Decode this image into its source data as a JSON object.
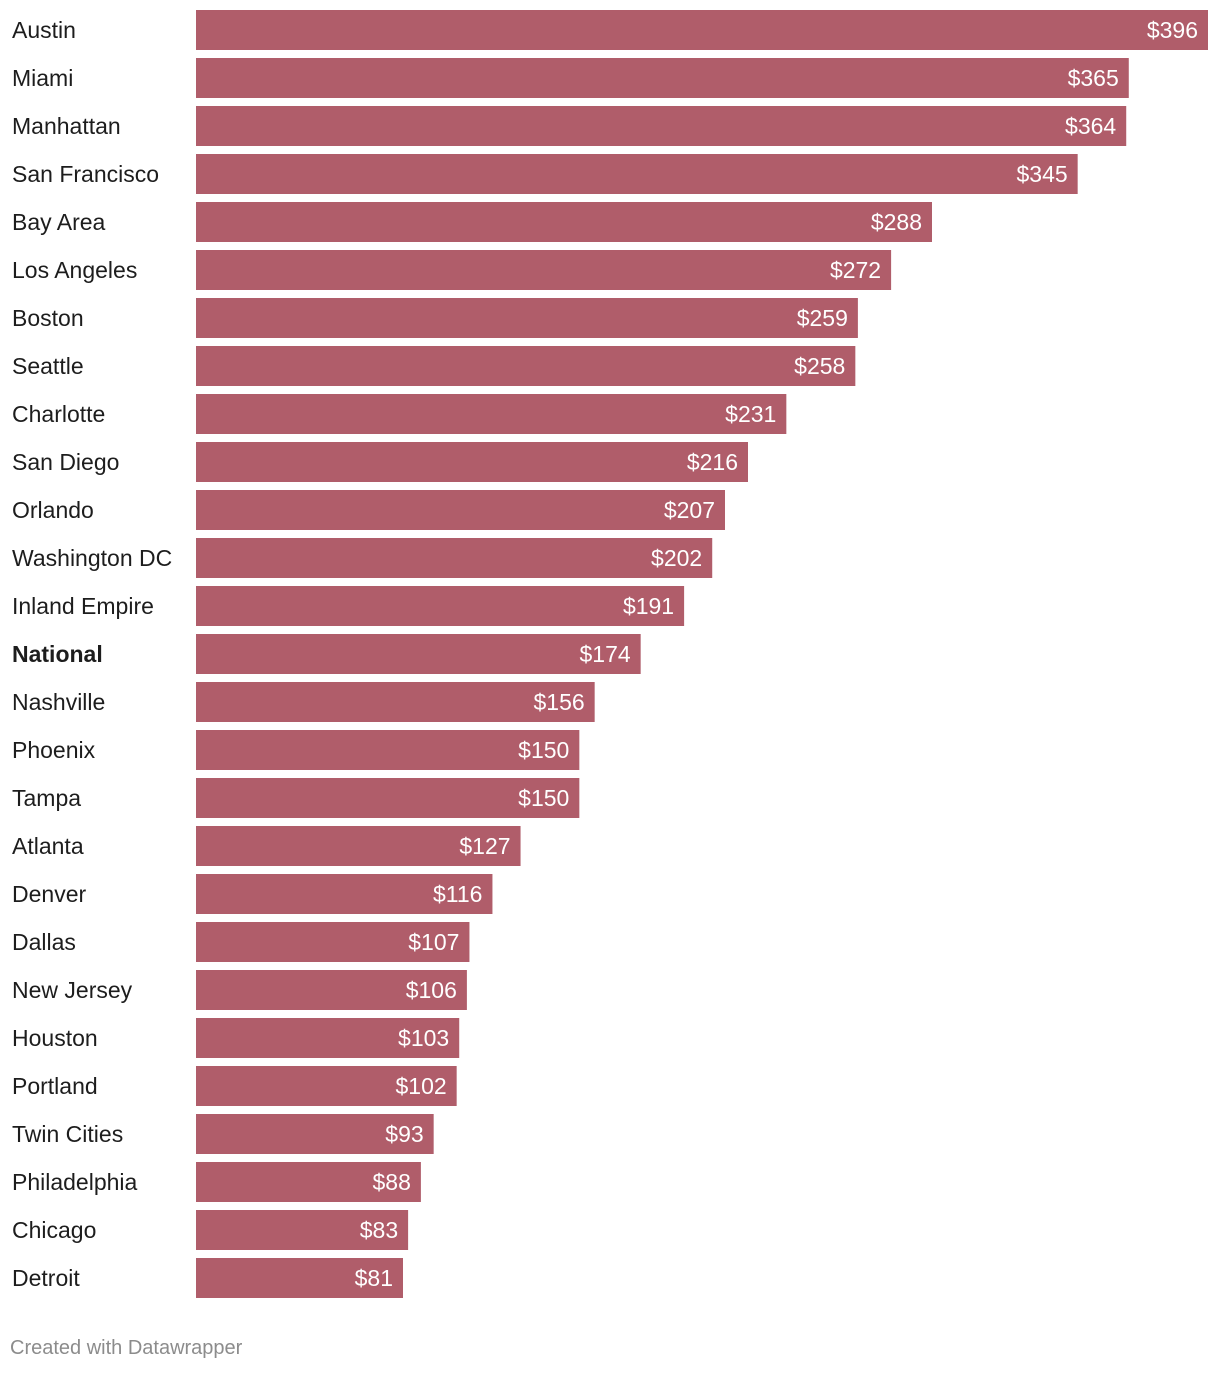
{
  "chart_data": {
    "type": "bar",
    "orientation": "horizontal",
    "categories": [
      "Austin",
      "Miami",
      "Manhattan",
      "San Francisco",
      "Bay Area",
      "Los Angeles",
      "Boston",
      "Seattle",
      "Charlotte",
      "San Diego",
      "Orlando",
      "Washington DC",
      "Inland Empire",
      "National",
      "Nashville",
      "Phoenix",
      "Tampa",
      "Atlanta",
      "Denver",
      "Dallas",
      "New Jersey",
      "Houston",
      "Portland",
      "Twin Cities",
      "Philadelphia",
      "Chicago",
      "Detroit"
    ],
    "values": [
      396,
      365,
      364,
      345,
      288,
      272,
      259,
      258,
      231,
      216,
      207,
      202,
      191,
      174,
      156,
      150,
      150,
      127,
      116,
      107,
      106,
      103,
      102,
      93,
      88,
      83,
      81
    ],
    "value_labels": [
      "$396",
      "$365",
      "$364",
      "$345",
      "$288",
      "$272",
      "$259",
      "$258",
      "$231",
      "$216",
      "$207",
      "$202",
      "$191",
      "$174",
      "$156",
      "$150",
      "$150",
      "$127",
      "$116",
      "$107",
      "$106",
      "$103",
      "$102",
      "$93",
      "$88",
      "$83",
      "$81"
    ],
    "highlight_category": "National",
    "xlim": [
      0,
      396
    ],
    "bar_color": "#b05d6a",
    "grid": false,
    "legend": "none"
  },
  "footer": {
    "credit": "Created with Datawrapper"
  }
}
